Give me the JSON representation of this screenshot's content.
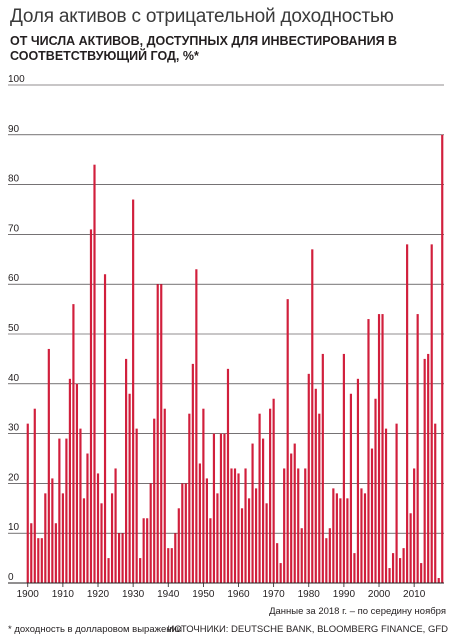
{
  "header": {
    "title": "Доля активов с отрицательной доходностью",
    "subtitle": "ОТ ЧИСЛА АКТИВОВ, ДОСТУПНЫХ ДЛЯ ИНВЕСТИРОВАНИЯ В СООТВЕТСТВУЮЩИЙ ГОД, %*"
  },
  "footer": {
    "note": "Данные за 2018 г. – по середину ноября",
    "footnote": "* доходность в долларовом выражении",
    "sources": "ИСТОЧНИКИ: DEUTSCHE BANK, BLOOMBERG FINANCE, GFD"
  },
  "colors": {
    "bar": "#d11f3c",
    "grid": "#231f20",
    "text": "#231f20"
  },
  "chart_data": {
    "type": "bar",
    "title": "Доля активов с отрицательной доходностью",
    "xlabel": "",
    "ylabel": "",
    "ylim": [
      0,
      100
    ],
    "yticks": [
      0,
      10,
      20,
      30,
      40,
      50,
      60,
      70,
      80,
      90,
      100
    ],
    "xticks": [
      "1900",
      "1910",
      "1920",
      "1930",
      "1940",
      "1950",
      "1960",
      "1970",
      "1980",
      "1990",
      "2000",
      "2010"
    ],
    "grid": true,
    "x": [
      1900,
      1901,
      1902,
      1903,
      1904,
      1905,
      1906,
      1907,
      1908,
      1909,
      1910,
      1911,
      1912,
      1913,
      1914,
      1915,
      1916,
      1917,
      1918,
      1919,
      1920,
      1921,
      1922,
      1923,
      1924,
      1925,
      1926,
      1927,
      1928,
      1929,
      1930,
      1931,
      1932,
      1933,
      1934,
      1935,
      1936,
      1937,
      1938,
      1939,
      1940,
      1941,
      1942,
      1943,
      1944,
      1945,
      1946,
      1947,
      1948,
      1949,
      1950,
      1951,
      1952,
      1953,
      1954,
      1955,
      1956,
      1957,
      1958,
      1959,
      1960,
      1961,
      1962,
      1963,
      1964,
      1965,
      1966,
      1967,
      1968,
      1969,
      1970,
      1971,
      1972,
      1973,
      1974,
      1975,
      1976,
      1977,
      1978,
      1979,
      1980,
      1981,
      1982,
      1983,
      1984,
      1985,
      1986,
      1987,
      1988,
      1989,
      1990,
      1991,
      1992,
      1993,
      1994,
      1995,
      1996,
      1997,
      1998,
      1999,
      2000,
      2001,
      2002,
      2003,
      2004,
      2005,
      2006,
      2007,
      2008,
      2009,
      2010,
      2011,
      2012,
      2013,
      2014,
      2015,
      2016,
      2017,
      2018
    ],
    "values": [
      32,
      12,
      35,
      9,
      9,
      18,
      47,
      21,
      12,
      29,
      18,
      29,
      41,
      56,
      40,
      31,
      17,
      26,
      71,
      84,
      22,
      16,
      62,
      5,
      18,
      23,
      10,
      10,
      45,
      38,
      77,
      31,
      5,
      13,
      13,
      20,
      33,
      60,
      60,
      35,
      7,
      7,
      10,
      15,
      20,
      20,
      34,
      44,
      63,
      24,
      35,
      21,
      13,
      30,
      18,
      30,
      30,
      43,
      23,
      23,
      22,
      15,
      23,
      17,
      28,
      19,
      34,
      29,
      16,
      35,
      37,
      8,
      4,
      23,
      57,
      26,
      28,
      23,
      11,
      23,
      42,
      67,
      39,
      34,
      46,
      9,
      11,
      19,
      18,
      17,
      46,
      17,
      38,
      6,
      41,
      19,
      18,
      53,
      27,
      37,
      54,
      54,
      31,
      3,
      6,
      32,
      5,
      7,
      68,
      14,
      23,
      54,
      4,
      45,
      46,
      68,
      32,
      1,
      90
    ]
  }
}
